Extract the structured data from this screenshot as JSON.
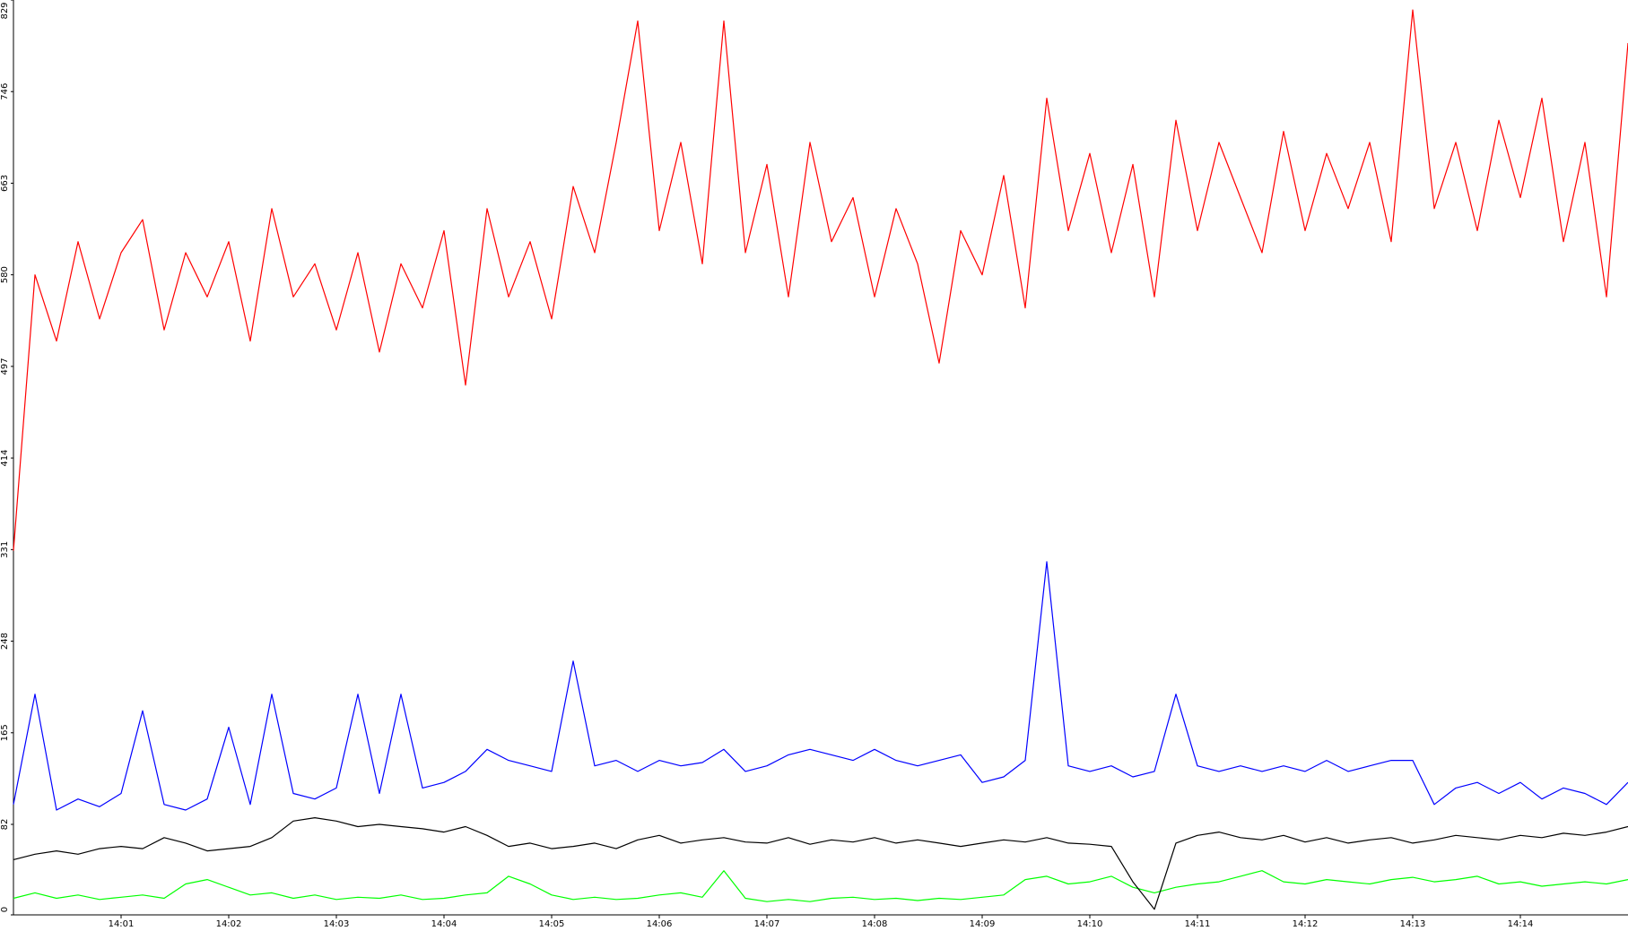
{
  "chart_data": {
    "type": "line",
    "x": [
      0,
      0.2,
      0.4,
      0.6,
      0.8,
      1.0,
      1.2,
      1.4,
      1.6,
      1.8,
      2.0,
      2.2,
      2.4,
      2.6,
      2.8,
      3.0,
      3.2,
      3.4,
      3.6,
      3.8,
      4.0,
      4.2,
      4.4,
      4.6,
      4.8,
      5.0,
      5.2,
      5.4,
      5.6,
      5.8,
      6.0,
      6.2,
      6.4,
      6.6,
      6.8,
      7.0,
      7.2,
      7.4,
      7.6,
      7.8,
      8.0,
      8.2,
      8.4,
      8.6,
      8.8,
      9.0,
      9.2,
      9.4,
      9.6,
      9.8,
      10.0,
      10.2,
      10.4,
      10.6,
      10.8,
      11.0,
      11.2,
      11.4,
      11.6,
      11.8,
      12.0,
      12.2,
      12.4,
      12.6,
      12.8,
      13.0,
      13.2,
      13.4,
      13.6,
      13.8,
      14.0,
      14.2,
      14.4,
      14.6,
      14.8,
      15.0
    ],
    "series": [
      {
        "color": "#00ff00",
        "values": [
          15,
          20,
          15,
          18,
          14,
          16,
          18,
          15,
          28,
          32,
          25,
          18,
          20,
          15,
          18,
          14,
          16,
          15,
          18,
          14,
          15,
          18,
          20,
          35,
          28,
          18,
          14,
          16,
          14,
          15,
          18,
          20,
          16,
          40,
          15,
          12,
          14,
          12,
          15,
          16,
          14,
          15,
          13,
          15,
          14,
          16,
          18,
          32,
          35,
          28,
          30,
          35,
          25,
          20,
          25,
          28,
          30,
          35,
          40,
          30,
          28,
          32,
          30,
          28,
          32,
          34,
          30,
          32,
          35,
          28,
          30,
          26,
          28,
          30,
          28,
          32
        ]
      },
      {
        "color": "#000000",
        "values": [
          50,
          55,
          58,
          55,
          60,
          62,
          60,
          70,
          65,
          58,
          60,
          62,
          70,
          85,
          88,
          85,
          80,
          82,
          80,
          78,
          75,
          80,
          72,
          62,
          65,
          60,
          62,
          65,
          60,
          68,
          72,
          65,
          68,
          70,
          66,
          65,
          70,
          64,
          68,
          66,
          70,
          65,
          68,
          65,
          62,
          65,
          68,
          66,
          70,
          65,
          64,
          62,
          30,
          5,
          65,
          72,
          75,
          70,
          68,
          72,
          66,
          70,
          65,
          68,
          70,
          65,
          68,
          72,
          70,
          68,
          72,
          70,
          74,
          72,
          75,
          80
        ]
      },
      {
        "color": "#0000ff",
        "values": [
          100,
          200,
          95,
          105,
          98,
          110,
          185,
          100,
          95,
          105,
          170,
          100,
          200,
          110,
          105,
          115,
          200,
          110,
          200,
          115,
          120,
          130,
          150,
          140,
          135,
          130,
          230,
          135,
          140,
          130,
          140,
          135,
          138,
          150,
          130,
          135,
          145,
          150,
          145,
          140,
          150,
          140,
          135,
          140,
          145,
          120,
          125,
          140,
          320,
          135,
          130,
          135,
          125,
          130,
          200,
          135,
          130,
          135,
          130,
          135,
          130,
          140,
          130,
          135,
          140,
          140,
          100,
          115,
          120,
          110,
          120,
          105,
          115,
          110,
          100,
          120
        ]
      },
      {
        "color": "#ff0000",
        "values": [
          330,
          580,
          520,
          610,
          540,
          600,
          630,
          530,
          600,
          560,
          610,
          520,
          640,
          560,
          590,
          530,
          600,
          510,
          590,
          550,
          620,
          480,
          640,
          560,
          610,
          540,
          660,
          600,
          700,
          810,
          620,
          700,
          590,
          810,
          600,
          680,
          560,
          700,
          610,
          650,
          560,
          640,
          590,
          500,
          620,
          580,
          670,
          550,
          740,
          620,
          690,
          600,
          680,
          560,
          720,
          620,
          700,
          650,
          600,
          710,
          620,
          690,
          640,
          700,
          610,
          820,
          640,
          700,
          620,
          720,
          650,
          740,
          610,
          700,
          560,
          790
        ]
      }
    ],
    "xlim": [
      0,
      15
    ],
    "xticks": [
      {
        "value": 1,
        "label": "14:01"
      },
      {
        "value": 2,
        "label": "14:02"
      },
      {
        "value": 3,
        "label": "14:03"
      },
      {
        "value": 4,
        "label": "14:04"
      },
      {
        "value": 5,
        "label": "14:05"
      },
      {
        "value": 6,
        "label": "14:06"
      },
      {
        "value": 7,
        "label": "14:07"
      },
      {
        "value": 8,
        "label": "14:08"
      },
      {
        "value": 9,
        "label": "14:09"
      },
      {
        "value": 10,
        "label": "14:10"
      },
      {
        "value": 11,
        "label": "14:11"
      },
      {
        "value": 12,
        "label": "14:12"
      },
      {
        "value": 13,
        "label": "14:13"
      },
      {
        "value": 14,
        "label": "14:14"
      }
    ],
    "ylim": [
      0,
      829
    ],
    "yticks": [
      0,
      82,
      165,
      248,
      331,
      414,
      497,
      580,
      663,
      746,
      829
    ],
    "grid": false
  }
}
